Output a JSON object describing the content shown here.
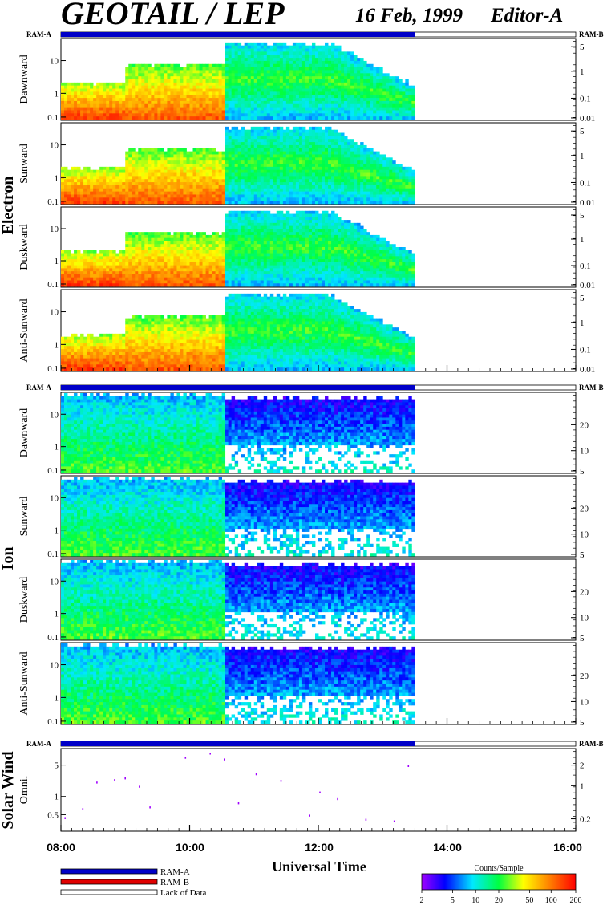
{
  "header": {
    "title": "GEOTAIL / LEP",
    "date": "16 Feb, 1999",
    "editor": "Editor-A"
  },
  "ram_labels": {
    "left": "RAM-A",
    "right": "RAM-B"
  },
  "colors": {
    "ram_a": "#0000c8",
    "ram_b": "#e00000",
    "lack": "#ffffff"
  },
  "chart_data": {
    "type": "heatmap",
    "x_axis": {
      "label": "Universal Time",
      "range": [
        "08:00",
        "16:00"
      ],
      "tick_labels": [
        "08:00",
        "10:00",
        "12:00",
        "14:00",
        "16:00"
      ],
      "data_end": "13:30"
    },
    "groups": [
      {
        "name": "Electron",
        "panels": [
          {
            "label": "Dawnward",
            "left_ticks": [
              "10",
              "1",
              "0.1"
            ],
            "right_ticks": [
              "5",
              "1",
              "0.1",
              "0.01"
            ]
          },
          {
            "label": "Sunward",
            "left_ticks": [
              "10",
              "1",
              "0.1"
            ],
            "right_ticks": [
              "5",
              "1",
              "0.1",
              "0.01"
            ]
          },
          {
            "label": "Duskward",
            "left_ticks": [
              "10",
              "1",
              "0.1"
            ],
            "right_ticks": [
              "5",
              "1",
              "0.1",
              "0.01"
            ]
          },
          {
            "label": "Anti-Sunward",
            "left_ticks": [
              "10",
              "1",
              "0.1"
            ],
            "right_ticks": [
              "5",
              "1",
              "0.1",
              "0.01"
            ]
          }
        ]
      },
      {
        "name": "Ion",
        "panels": [
          {
            "label": "Dawnward",
            "left_ticks": [
              "10",
              "1",
              "0.1"
            ],
            "right_ticks": [
              "20",
              "10",
              "5"
            ]
          },
          {
            "label": "Sunward",
            "left_ticks": [
              "10",
              "1",
              "0.1"
            ],
            "right_ticks": [
              "20",
              "10",
              "5"
            ]
          },
          {
            "label": "Duskward",
            "left_ticks": [
              "10",
              "1",
              "0.1"
            ],
            "right_ticks": [
              "20",
              "10",
              "5"
            ]
          },
          {
            "label": "Anti-Sunward",
            "left_ticks": [
              "10",
              "1",
              "0.1"
            ],
            "right_ticks": [
              "20",
              "10",
              "5"
            ]
          }
        ]
      },
      {
        "name": "Solar Wind",
        "panels": [
          {
            "label": "Omni.",
            "left_ticks": [
              "5",
              "1",
              "0.5"
            ],
            "right_ticks": [
              "2",
              "1",
              "0.2"
            ]
          }
        ]
      }
    ],
    "legend": [
      "RAM-A",
      "RAM-B",
      "Lack of Data"
    ],
    "colorbar": {
      "title": "Counts/Sample",
      "ticks": [
        "2",
        "5",
        "10",
        "20",
        "50",
        "100",
        "200"
      ]
    }
  }
}
